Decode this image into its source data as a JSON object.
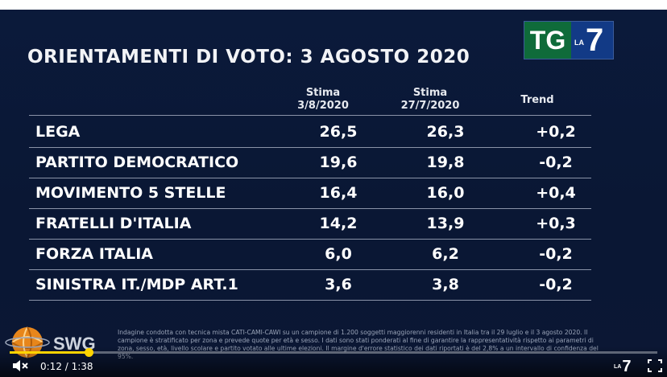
{
  "title": "ORIENTAMENTI DI VOTO: 3 AGOSTO 2020",
  "logo": {
    "tg": "TG",
    "la": "LA",
    "seven": "7"
  },
  "headers": {
    "col1_line1": "Stima",
    "col1_line2": "3/8/2020",
    "col2_line1": "Stima",
    "col2_line2": "27/7/2020",
    "col3": "Trend"
  },
  "rows": [
    {
      "party": "LEGA",
      "v1": "26,5",
      "v2": "26,3",
      "trend": "+0,2"
    },
    {
      "party": "PARTITO DEMOCRATICO",
      "v1": "19,6",
      "v2": "19,8",
      "trend": "-0,2"
    },
    {
      "party": "MOVIMENTO 5 STELLE",
      "v1": "16,4",
      "v2": "16,0",
      "trend": "+0,4"
    },
    {
      "party": "FRATELLI D'ITALIA",
      "v1": "14,2",
      "v2": "13,9",
      "trend": "+0,3"
    },
    {
      "party": "FORZA ITALIA",
      "v1": "6,0",
      "v2": "6,2",
      "trend": "-0,2"
    },
    {
      "party": "SINISTRA IT./MDP ART.1",
      "v1": "3,6",
      "v2": "3,8",
      "trend": "-0,2"
    }
  ],
  "footnote": "Indagine condotta con tecnica mista CATI-CAMI-CAWI su un campione di 1.200 soggetti maggiorenni residenti in Italia tra il 29 luglio e il 3 agosto 2020. Il campione è stratificato per zona e prevede quote per età e sesso. I dati sono stati ponderati al fine di garantire la rappresentatività rispetto ai parametri di zona, sesso, età, livello scolare e partito votato alle ultime elezioni. Il margine d'errore statistico dei dati riportati è del 2,8% a un intervallo di confidenza del 95%.",
  "source_logo": "SWG",
  "player": {
    "time": "0:12 / 1:38",
    "progress": 0.122,
    "accent": "#ffd400",
    "mini_logo_la": "LA",
    "mini_logo_7": "7"
  }
}
